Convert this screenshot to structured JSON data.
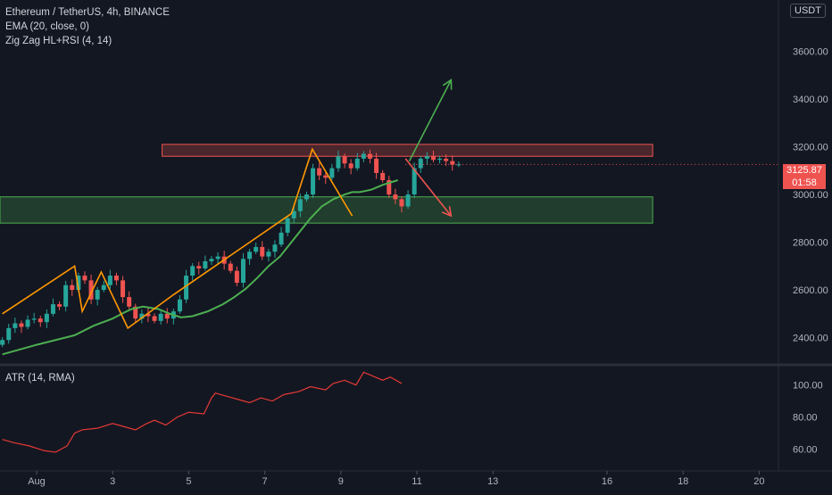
{
  "header": {
    "symbol_line": "Ethereum / TetherUS, 4h, BINANCE",
    "indicators": [
      "EMA (20, close, 0)",
      "Zig Zag HL+RSI (4, 14)"
    ],
    "currency_button": "USDT"
  },
  "atr": {
    "label": "ATR (14, RMA)"
  },
  "price_tag": {
    "price": "3125.87",
    "countdown": "01:58"
  },
  "colors": {
    "background": "#131722",
    "up": "#26a69a",
    "down": "#ef5350",
    "ema": "#4caf50",
    "zigzag": "#ff9800",
    "atr": "#e53935",
    "resistance_fill": "rgba(239,83,80,0.25)",
    "support_fill": "rgba(76,175,80,0.25)"
  },
  "chart_data": [
    {
      "type": "candlestick",
      "title": "Ethereum / TetherUS, 4h, BINANCE",
      "x_ticks": [
        "Aug",
        "3",
        "5",
        "7",
        "9",
        "11",
        "13",
        "16",
        "18",
        "20"
      ],
      "x_tick_days": [
        1,
        3,
        5,
        7,
        9,
        11,
        13,
        16,
        18,
        20
      ],
      "y_ticks": [
        "2400.00",
        "2600.00",
        "2800.00",
        "3000.00",
        "3200.00",
        "3400.00",
        "3600.00"
      ],
      "y_tick_values": [
        2400,
        2600,
        2800,
        3000,
        3200,
        3400,
        3600
      ],
      "ylim": [
        2290,
        3815
      ],
      "xlim_days": [
        0.1,
        20.7
      ],
      "grid": false,
      "candles_4h_close_from_jul31": [
        2390,
        2440,
        2460,
        2445,
        2475,
        2480,
        2465,
        2500,
        2540,
        2530,
        2620,
        2600,
        2660,
        2640,
        2560,
        2600,
        2620,
        2660,
        2640,
        2570,
        2530,
        2480,
        2500,
        2490,
        2470,
        2500,
        2480,
        2510,
        2560,
        2660,
        2700,
        2690,
        2720,
        2730,
        2740,
        2710,
        2680,
        2630,
        2730,
        2760,
        2780,
        2740,
        2760,
        2790,
        2840,
        2900,
        2930,
        2980,
        3000,
        3110,
        3080,
        3070,
        3110,
        3160,
        3130,
        3110,
        3150,
        3170,
        3150,
        3090,
        3060,
        3000,
        2980,
        2950,
        3000,
        3110,
        3150,
        3160,
        3145,
        3150,
        3140,
        3125,
        3126
      ],
      "ema": [
        2330,
        2370,
        2410,
        2450,
        2480,
        2505,
        2520,
        2530,
        2520,
        2500,
        2485,
        2490,
        2510,
        2540,
        2570,
        2605,
        2650,
        2700,
        2740,
        2780,
        2840,
        2900,
        2950,
        2980,
        3000,
        3010,
        3010,
        3020,
        3040,
        3060
      ],
      "ema_x_days": [
        0.1,
        1.0,
        2.0,
        2.5,
        3.0,
        3.3,
        3.5,
        3.8,
        4.2,
        4.5,
        4.8,
        5.1,
        5.5,
        5.9,
        6.2,
        6.5,
        6.8,
        7.1,
        7.4,
        7.6,
        7.9,
        8.2,
        8.5,
        8.8,
        9.1,
        9.3,
        9.5,
        9.8,
        10.1,
        10.5
      ],
      "zigzag_days": [
        0.1,
        2.0,
        2.2,
        2.7,
        3.4,
        4.6,
        7.7,
        8.25,
        9.3
      ],
      "zigzag_prices": [
        2500,
        2700,
        2510,
        2675,
        2440,
        2580,
        2920,
        3190,
        2910
      ],
      "resistance_zone": [
        3160,
        3210
      ],
      "support_zone": [
        2880,
        2990
      ],
      "projection_up": {
        "from": [
          10.8,
          3140
        ],
        "to": [
          11.9,
          3480
        ]
      },
      "projection_down": {
        "from": [
          10.7,
          3150
        ],
        "to": [
          11.9,
          2910
        ]
      },
      "last_price": 3125.87
    },
    {
      "type": "line",
      "title": "ATR (14, RMA)",
      "y_ticks": [
        "60.00",
        "80.00",
        "100.00"
      ],
      "y_tick_values": [
        60,
        80,
        100
      ],
      "ylim": [
        48,
        111
      ],
      "x_days": [
        0.1,
        0.4,
        0.8,
        1.2,
        1.5,
        1.8,
        2.0,
        2.2,
        2.6,
        3.0,
        3.3,
        3.6,
        3.9,
        4.1,
        4.4,
        4.7,
        5.0,
        5.4,
        5.6,
        5.7,
        6.0,
        6.3,
        6.6,
        6.9,
        7.2,
        7.5,
        7.9,
        8.2,
        8.6,
        8.8,
        9.1,
        9.4,
        9.6,
        9.8,
        10.1,
        10.3,
        10.6
      ],
      "values": [
        66,
        64,
        62,
        59,
        58,
        62,
        70,
        72,
        73,
        76,
        74,
        72,
        76,
        78,
        75,
        80,
        83,
        82,
        92,
        95,
        93,
        91,
        89,
        92,
        90,
        94,
        96,
        99,
        97,
        101,
        103,
        100,
        108,
        106,
        103,
        105,
        101
      ]
    }
  ]
}
